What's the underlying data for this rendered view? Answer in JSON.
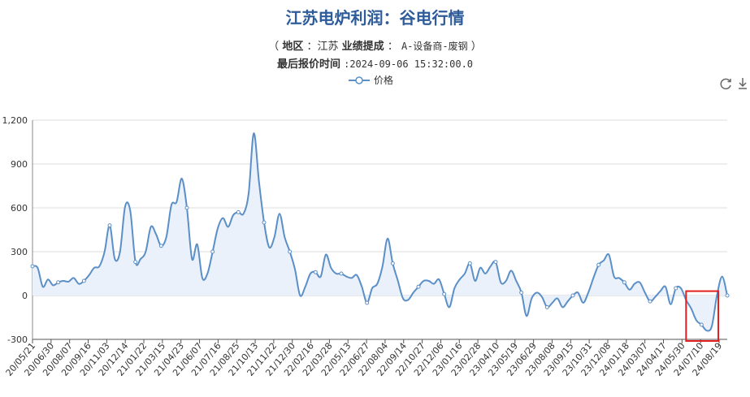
{
  "title": "江苏电炉利润：谷电行情",
  "subtitle": {
    "open": "（",
    "region_label": "地区",
    "region_value": "：江苏",
    "metric_label": "业绩提成",
    "metric_sep": "：",
    "metric_value": "A-设备商-废钢",
    "close": "）"
  },
  "update": {
    "label": "最后报价时间",
    "value": ":2024-09-06 15:32:00.0"
  },
  "toolbar": {
    "refresh_icon": "refresh-icon",
    "download_icon": "download-icon"
  },
  "colors": {
    "line": "#5B8FC7",
    "area": "#EAF1FA",
    "highlight": "#E02020",
    "title": "#2E5C9A"
  },
  "chart_data": {
    "type": "area",
    "title": "江苏电炉利润：谷电行情",
    "series": [
      {
        "name": "价格"
      }
    ],
    "ylim": [
      -300,
      1200
    ],
    "yticks": [
      "-300",
      "0",
      "300",
      "600",
      "900",
      "1,200"
    ],
    "ytick_values": [
      -300,
      0,
      300,
      600,
      900,
      1200
    ],
    "xticks": [
      "20/05/21",
      "20/06/30",
      "20/08/07",
      "20/09/16",
      "20/11/03",
      "20/12/14",
      "21/01/22",
      "21/03/15",
      "21/04/23",
      "21/06/07",
      "21/07/16",
      "21/08/25",
      "21/10/13",
      "21/11/22",
      "21/12/30",
      "22/02/16",
      "22/03/28",
      "22/05/13",
      "22/06/27",
      "22/08/04",
      "22/09/14",
      "22/10/27",
      "22/12/06",
      "23/01/16",
      "23/02/28",
      "23/04/10",
      "23/05/19",
      "23/06/29",
      "23/08/08",
      "23/09/15",
      "23/10/31",
      "23/12/08",
      "24/01/18",
      "24/03/07",
      "24/04/17",
      "24/05/30",
      "24/07/10",
      "24/08/19"
    ],
    "values": [
      200,
      190,
      60,
      110,
      70,
      90,
      100,
      95,
      120,
      80,
      100,
      140,
      190,
      200,
      300,
      480,
      250,
      300,
      610,
      580,
      230,
      250,
      300,
      470,
      420,
      340,
      400,
      620,
      640,
      800,
      600,
      250,
      350,
      120,
      150,
      300,
      460,
      530,
      470,
      550,
      570,
      560,
      700,
      1110,
      780,
      500,
      330,
      400,
      560,
      400,
      300,
      180,
      0,
      60,
      150,
      160,
      130,
      280,
      190,
      150,
      150,
      130,
      120,
      140,
      60,
      -50,
      50,
      80,
      200,
      390,
      220,
      100,
      -20,
      -30,
      20,
      60,
      100,
      100,
      80,
      110,
      10,
      -80,
      50,
      110,
      150,
      220,
      100,
      190,
      150,
      200,
      230,
      90,
      100,
      170,
      100,
      20,
      -140,
      -20,
      20,
      -10,
      -80,
      -50,
      -20,
      -80,
      -40,
      0,
      20,
      -50,
      20,
      120,
      210,
      240,
      280,
      130,
      120,
      90,
      40,
      80,
      90,
      20,
      -40,
      -10,
      30,
      60,
      -60,
      50,
      50,
      -30,
      -90,
      -170,
      -200,
      -240,
      -210,
      0,
      130,
      0
    ],
    "grid": true,
    "legend": "top-center",
    "annotation": {
      "type": "rectangle",
      "x_from": "24/06/13",
      "x_to": "24/08/27",
      "y_from": 30,
      "y_to": -300
    }
  }
}
